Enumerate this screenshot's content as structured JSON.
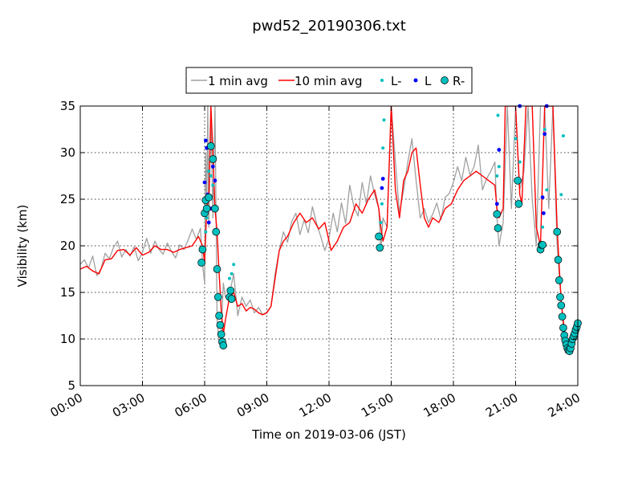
{
  "chart_data": {
    "type": "line",
    "title": "pwd52_20190306.txt",
    "xlabel": "Time on 2019-03-06 (JST)",
    "ylabel": "Visibility (km)",
    "xlim": [
      0,
      24
    ],
    "ylim": [
      5,
      35
    ],
    "x_ticks": [
      {
        "value": 0,
        "label": "00:00"
      },
      {
        "value": 3,
        "label": "03:00"
      },
      {
        "value": 6,
        "label": "06:00"
      },
      {
        "value": 9,
        "label": "09:00"
      },
      {
        "value": 12,
        "label": "12:00"
      },
      {
        "value": 15,
        "label": "15:00"
      },
      {
        "value": 18,
        "label": "18:00"
      },
      {
        "value": 21,
        "label": "21:00"
      },
      {
        "value": 24,
        "label": "24:00"
      }
    ],
    "y_ticks": [
      {
        "value": 5,
        "label": "5"
      },
      {
        "value": 10,
        "label": "10"
      },
      {
        "value": 15,
        "label": "15"
      },
      {
        "value": 20,
        "label": "20"
      },
      {
        "value": 25,
        "label": "25"
      },
      {
        "value": 30,
        "label": "30"
      },
      {
        "value": 35,
        "label": "35"
      }
    ],
    "grid": true,
    "legend": {
      "placement": "top-center",
      "entries": [
        {
          "label": "1 min avg",
          "kind": "line",
          "color": "#a0a0a0"
        },
        {
          "label": "10 min avg",
          "kind": "line",
          "color": "#ff0000"
        },
        {
          "label": "L-",
          "kind": "small-dot",
          "color": "#00bfbf"
        },
        {
          "label": "L",
          "kind": "dot",
          "color": "#0000ff"
        },
        {
          "label": "R-",
          "kind": "circle",
          "color": "#00bfbf"
        }
      ]
    },
    "series": [
      {
        "name": "1 min avg",
        "color": "#a0a0a0",
        "x": [
          0.0,
          0.2,
          0.4,
          0.6,
          0.8,
          1.0,
          1.2,
          1.4,
          1.6,
          1.8,
          2.0,
          2.2,
          2.4,
          2.6,
          2.8,
          3.0,
          3.2,
          3.4,
          3.6,
          3.8,
          4.0,
          4.2,
          4.4,
          4.6,
          4.8,
          5.0,
          5.2,
          5.4,
          5.6,
          5.8,
          5.9,
          6.0,
          6.05,
          6.1,
          6.15,
          6.2,
          6.3,
          6.4,
          6.5,
          6.6,
          6.7,
          6.8,
          6.9,
          7.0,
          7.2,
          7.4,
          7.6,
          7.8,
          8.0,
          8.2,
          8.4,
          8.6,
          8.8,
          9.0,
          9.2,
          9.4,
          9.6,
          9.8,
          10.0,
          10.2,
          10.4,
          10.6,
          10.8,
          11.0,
          11.2,
          11.4,
          11.6,
          11.8,
          12.0,
          12.2,
          12.4,
          12.6,
          12.8,
          13.0,
          13.2,
          13.4,
          13.6,
          13.8,
          14.0,
          14.2,
          14.4,
          14.5,
          14.6,
          14.8,
          15.0,
          15.2,
          15.4,
          15.6,
          15.8,
          16.0,
          16.2,
          16.4,
          16.6,
          16.8,
          17.0,
          17.2,
          17.4,
          17.6,
          17.8,
          18.0,
          18.2,
          18.4,
          18.6,
          18.8,
          19.0,
          19.2,
          19.4,
          19.6,
          19.8,
          20.0,
          20.1,
          20.2,
          20.4,
          20.6,
          20.8,
          21.0,
          21.2,
          21.4,
          21.6,
          21.8,
          22.0,
          22.2,
          22.4,
          22.6,
          22.8,
          23.0,
          23.2,
          23.4,
          23.6,
          23.8,
          24.0
        ],
        "y": [
          18.0,
          18.5,
          17.6,
          18.9,
          16.8,
          17.5,
          19.2,
          18.6,
          19.8,
          20.5,
          18.8,
          19.6,
          18.9,
          19.9,
          18.4,
          19.3,
          20.8,
          19.2,
          20.5,
          19.6,
          19.1,
          20.3,
          19.4,
          18.7,
          20.1,
          19.6,
          20.6,
          21.8,
          20.7,
          21.9,
          18.0,
          16.0,
          30.0,
          24.0,
          35.0,
          22.0,
          34.0,
          23.0,
          35.0,
          12.0,
          9.5,
          10.5,
          16.0,
          14.5,
          14.8,
          17.0,
          12.5,
          14.5,
          13.5,
          14.2,
          12.8,
          13.4,
          12.6,
          12.9,
          13.5,
          17.0,
          19.5,
          21.5,
          20.4,
          22.6,
          23.5,
          21.2,
          22.8,
          21.4,
          24.2,
          22.4,
          21.0,
          19.5,
          20.8,
          23.5,
          21.5,
          24.6,
          22.4,
          26.5,
          24.2,
          23.2,
          26.8,
          24.5,
          27.5,
          25.5,
          24.0,
          19.5,
          23.0,
          22.0,
          35.0,
          29.0,
          23.5,
          26.0,
          29.0,
          31.5,
          27.0,
          23.0,
          24.0,
          22.5,
          23.4,
          24.6,
          22.8,
          25.2,
          25.6,
          26.8,
          28.5,
          27.0,
          29.5,
          27.6,
          28.5,
          30.8,
          26.0,
          27.2,
          28.0,
          29.0,
          23.0,
          20.0,
          22.5,
          35.0,
          24.0,
          35.0,
          26.0,
          28.0,
          35.0,
          25.0,
          20.0,
          35.0,
          35.0,
          24.0,
          35.0,
          20.0,
          14.0,
          8.5,
          9.0,
          10.5,
          12.0
        ]
      },
      {
        "name": "10 min avg",
        "color": "#ff0000",
        "x": [
          0.0,
          0.3,
          0.6,
          0.9,
          1.2,
          1.5,
          1.8,
          2.1,
          2.4,
          2.7,
          3.0,
          3.3,
          3.6,
          3.9,
          4.2,
          4.5,
          4.8,
          5.1,
          5.4,
          5.7,
          5.9,
          6.0,
          6.1,
          6.2,
          6.3,
          6.4,
          6.5,
          6.6,
          6.7,
          6.8,
          6.9,
          7.0,
          7.2,
          7.4,
          7.6,
          7.8,
          8.0,
          8.2,
          8.4,
          8.6,
          8.8,
          9.0,
          9.2,
          9.4,
          9.6,
          9.8,
          10.0,
          10.3,
          10.6,
          10.9,
          11.2,
          11.5,
          11.8,
          12.1,
          12.4,
          12.7,
          13.0,
          13.3,
          13.6,
          13.9,
          14.2,
          14.4,
          14.5,
          14.6,
          14.8,
          15.0,
          15.2,
          15.4,
          15.6,
          15.8,
          16.0,
          16.2,
          16.4,
          16.6,
          16.8,
          17.0,
          17.3,
          17.6,
          17.9,
          18.2,
          18.5,
          18.8,
          19.1,
          19.4,
          19.7,
          20.0,
          20.1,
          20.2,
          20.4,
          20.5,
          20.7,
          21.0,
          21.2,
          21.3,
          21.5,
          21.8,
          22.0,
          22.2,
          22.4,
          22.6,
          22.8,
          23.0,
          23.2,
          23.4,
          23.6,
          23.8,
          24.0
        ],
        "y": [
          17.5,
          17.8,
          17.3,
          17.0,
          18.5,
          18.6,
          19.5,
          19.6,
          19.0,
          19.8,
          19.0,
          19.3,
          20.0,
          19.6,
          19.6,
          19.3,
          19.6,
          19.8,
          20.0,
          21.0,
          20.0,
          18.2,
          24.0,
          25.0,
          35.0,
          30.0,
          24.0,
          21.5,
          17.0,
          13.0,
          10.5,
          12.0,
          14.5,
          15.0,
          13.5,
          13.8,
          13.0,
          13.4,
          13.2,
          12.8,
          12.6,
          12.8,
          13.5,
          16.5,
          19.5,
          20.5,
          21.0,
          22.5,
          23.5,
          22.5,
          23.0,
          21.8,
          22.5,
          19.5,
          20.5,
          22.0,
          22.5,
          24.5,
          23.5,
          25.0,
          26.0,
          24.0,
          22.0,
          20.5,
          22.0,
          35.0,
          26.0,
          23.0,
          27.0,
          28.0,
          30.0,
          30.5,
          26.5,
          23.0,
          22.0,
          23.0,
          22.5,
          24.0,
          24.5,
          26.0,
          27.0,
          27.5,
          28.0,
          27.5,
          27.0,
          26.5,
          24.0,
          23.0,
          24.0,
          35.0,
          35.0,
          35.0,
          25.5,
          24.5,
          35.0,
          35.0,
          22.0,
          20.0,
          35.0,
          35.0,
          35.0,
          22.0,
          14.0,
          10.0,
          9.0,
          10.5,
          11.5
        ]
      }
    ],
    "markers": [
      {
        "name": "L-",
        "color": "#00bfbf",
        "x": [
          6.0,
          6.05,
          6.1,
          6.2,
          6.3,
          6.4,
          6.5,
          7.2,
          7.3,
          7.4,
          14.5,
          14.55,
          14.6,
          14.65,
          20.1,
          20.15,
          20.2,
          21.0,
          21.1,
          21.2,
          22.3,
          22.4,
          22.5,
          23.2,
          23.3
        ],
        "y": [
          24.0,
          21.5,
          23.0,
          28.0,
          27.5,
          26.5,
          29.5,
          16.5,
          17.0,
          18.0,
          22.5,
          24.5,
          30.5,
          33.5,
          27.5,
          34.0,
          28.5,
          31.5,
          27.0,
          29.0,
          22.0,
          32.5,
          26.0,
          25.5,
          31.8
        ]
      },
      {
        "name": "L",
        "color": "#0000ff",
        "x": [
          6.0,
          6.05,
          6.1,
          6.15,
          6.2,
          6.3,
          6.4,
          6.5,
          14.55,
          14.6,
          20.1,
          20.2,
          21.2,
          22.3,
          22.35,
          22.4,
          22.5
        ],
        "y": [
          26.8,
          31.3,
          30.5,
          25.5,
          22.5,
          24.0,
          28.5,
          27.0,
          26.2,
          27.2,
          24.5,
          30.3,
          35.0,
          25.2,
          23.5,
          32.0,
          35.0
        ]
      },
      {
        "name": "R-",
        "color": "#00bfbf",
        "x": [
          5.85,
          5.9,
          6.0,
          6.05,
          6.1,
          6.2,
          6.3,
          6.4,
          6.5,
          6.55,
          6.6,
          6.65,
          6.7,
          6.75,
          6.8,
          6.85,
          6.9,
          7.2,
          7.25,
          7.3,
          14.4,
          14.45,
          20.1,
          20.15,
          21.1,
          21.15,
          22.2,
          22.25,
          22.3,
          23.0,
          23.05,
          23.1,
          23.15,
          23.2,
          23.25,
          23.3,
          23.35,
          23.4,
          23.45,
          23.5,
          23.55,
          23.6,
          23.65,
          23.7,
          23.75,
          23.8,
          23.85,
          23.9,
          23.95,
          24.0
        ],
        "y": [
          18.2,
          19.6,
          23.5,
          24.9,
          24.0,
          25.2,
          30.7,
          29.3,
          24.0,
          21.5,
          17.5,
          14.5,
          12.5,
          11.5,
          10.5,
          9.7,
          9.3,
          14.5,
          15.2,
          14.3,
          21.0,
          19.8,
          23.4,
          21.9,
          27.0,
          24.5,
          19.6,
          20.1,
          20.1,
          21.5,
          18.5,
          16.3,
          14.5,
          13.6,
          12.4,
          11.2,
          10.4,
          9.8,
          9.4,
          9.0,
          8.8,
          8.7,
          9.0,
          9.5,
          10.0,
          10.3,
          10.6,
          11.0,
          11.3,
          11.7
        ]
      }
    ]
  }
}
